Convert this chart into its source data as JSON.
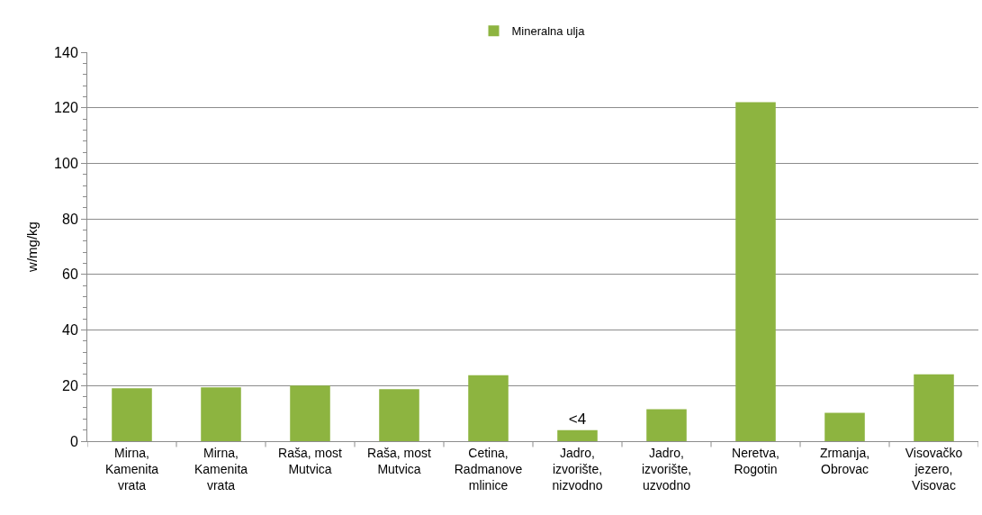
{
  "chart_data": {
    "type": "bar",
    "categories": [
      "Mirna, Kamenita vrata",
      "Mirna, Kamenita vrata",
      "Raša, most Mutvica",
      "Raša, most Mutvica",
      "Cetina, Radmanove mlinice",
      "Jadro, izvorište, nizvodno",
      "Jadro, izvorište, uzvodno",
      "Neretva, Rogotin",
      "Zrmanja, Obrovac",
      "Visovačko jezero, Visovac"
    ],
    "series": [
      {
        "name": "Mineralna ulja",
        "color": "#8db440",
        "values": [
          19.0,
          19.4,
          20.0,
          18.7,
          23.7,
          4,
          11.5,
          122,
          10.2,
          24.1
        ],
        "value_labels": [
          null,
          null,
          null,
          null,
          null,
          "<4",
          null,
          null,
          null,
          null
        ]
      }
    ],
    "ylabel": "w/mg/kg",
    "ylim": [
      0,
      140
    ],
    "yticks": [
      0,
      20,
      40,
      60,
      80,
      100,
      120,
      140
    ],
    "grid": "y",
    "legend": "top"
  }
}
